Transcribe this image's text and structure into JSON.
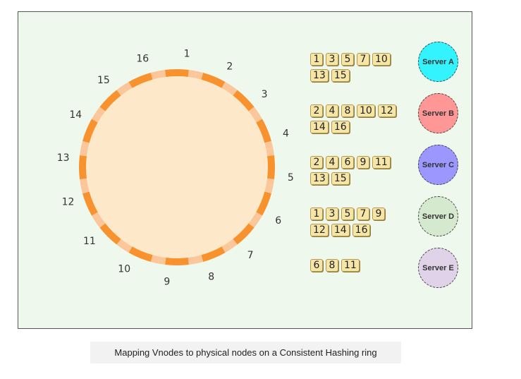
{
  "ring": {
    "labels": [
      "1",
      "2",
      "3",
      "4",
      "5",
      "6",
      "7",
      "8",
      "9",
      "10",
      "11",
      "12",
      "13",
      "14",
      "15",
      "16"
    ],
    "fill_color": "#fde9c9",
    "segment_light": "#fbc79a",
    "segment_dark": "#f7922e"
  },
  "servers": [
    {
      "name": "Server A",
      "color": "#33f3ff",
      "vnodes": [
        [
          "1",
          "3",
          "5",
          "7",
          "10"
        ],
        [
          "13",
          "15"
        ]
      ]
    },
    {
      "name": "Server B",
      "color": "#ff9797",
      "vnodes": [
        [
          "2",
          "4",
          "8",
          "10",
          "12"
        ],
        [
          "14",
          "16"
        ]
      ]
    },
    {
      "name": "Server C",
      "color": "#9b97ff",
      "vnodes": [
        [
          "2",
          "4",
          "6",
          "9",
          "11"
        ],
        [
          "13",
          "15"
        ]
      ]
    },
    {
      "name": "Server D",
      "color": "#d5e9cf",
      "vnodes": [
        [
          "1",
          "3",
          "5",
          "7",
          "9"
        ],
        [
          "12",
          "14",
          "16"
        ]
      ]
    },
    {
      "name": "Server E",
      "color": "#e0d3e9",
      "vnodes": [
        [
          "6",
          "8",
          "11"
        ]
      ]
    }
  ],
  "caption": "Mapping Vnodes to physical nodes on a Consistent Hashing ring"
}
